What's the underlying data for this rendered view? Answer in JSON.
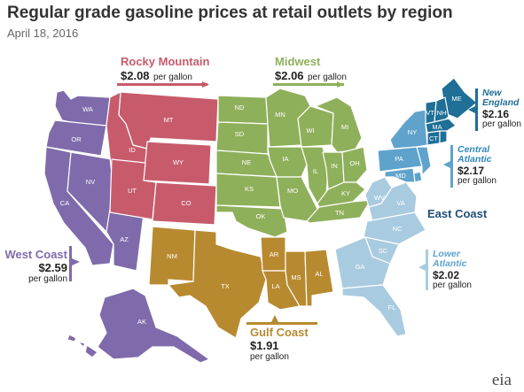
{
  "title": "Regular grade gasoline prices at retail outlets by region",
  "date": "April 18, 2016",
  "colors": {
    "west_coast": "#7f6bab",
    "rocky_mountain": "#c75b6b",
    "midwest": "#8fb05b",
    "gulf_coast": "#b88a30",
    "new_england": "#1f6f96",
    "central_atlantic": "#5fa3cc",
    "lower_atlantic": "#a9cbe0"
  },
  "regions": {
    "west_coast": {
      "name": "West Coast",
      "price": "$2.59",
      "unit_line1": "per gallon"
    },
    "rocky_mountain": {
      "name": "Rocky Mountain",
      "price": "$2.08",
      "unit": "per gallon"
    },
    "midwest": {
      "name": "Midwest",
      "price": "$2.06",
      "unit": "per gallon"
    },
    "gulf_coast": {
      "name": "Gulf Coast",
      "price": "$1.91",
      "unit": "per gallon"
    },
    "east_coast": {
      "name": "East Coast"
    },
    "new_england": {
      "name_line1": "New",
      "name_line2": "England",
      "price": "$2.16",
      "unit": "per gallon"
    },
    "central_atlantic": {
      "name_line1": "Central",
      "name_line2": "Atlantic",
      "price": "$2.17",
      "unit": "per gallon"
    },
    "lower_atlantic": {
      "name_line1": "Lower",
      "name_line2": "Atlantic",
      "price": "$2.02",
      "unit": "per gallon"
    }
  },
  "states": {
    "WA": "WA",
    "OR": "OR",
    "CA": "CA",
    "NV": "NV",
    "AZ": "AZ",
    "AK": "AK",
    "HI": "HI",
    "MT": "MT",
    "ID": "ID",
    "WY": "WY",
    "UT": "UT",
    "CO": "CO",
    "ND": "ND",
    "SD": "SD",
    "NE": "NE",
    "KS": "KS",
    "OK": "OK",
    "MN": "MN",
    "IA": "IA",
    "MO": "MO",
    "WI": "WI",
    "IL": "IL",
    "MI": "MI",
    "IN": "IN",
    "OH": "OH",
    "KY": "KY",
    "TN": "TN",
    "NM": "NM",
    "TX": "TX",
    "AR": "AR",
    "LA": "LA",
    "MS": "MS",
    "AL": "AL",
    "ME": "ME",
    "VT": "VT",
    "NH": "NH",
    "MA": "MA",
    "CT": "CT",
    "RI": "RI",
    "NY": "NY",
    "PA": "PA",
    "NJ": "NJ",
    "DE": "DE",
    "MD": "MD",
    "WV": "WV",
    "VA": "VA",
    "NC": "NC",
    "SC": "SC",
    "GA": "GA",
    "FL": "FL"
  },
  "logo": "eia"
}
